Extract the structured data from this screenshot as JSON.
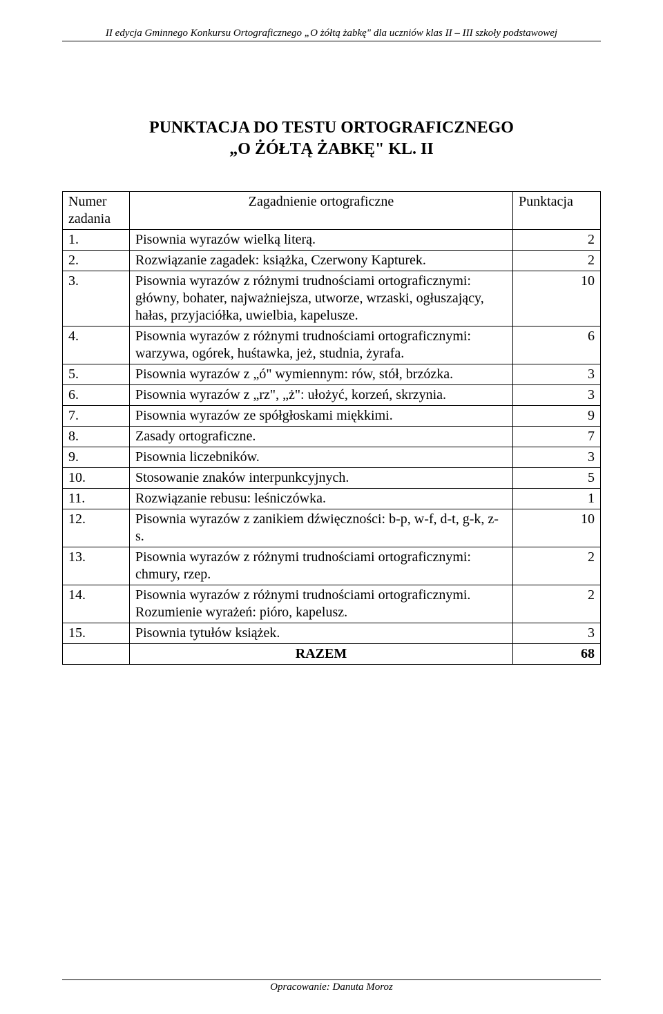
{
  "header": "II edycja Gminnego Konkursu Ortograficznego „O żółtą żabkę\" dla uczniów klas II – III szkoły podstawowej",
  "title_line1": "PUNKTACJA DO TESTU ORTOGRAFICZNEGO",
  "title_line2": "„O ŻÓŁTĄ ŻABKĘ\" KL. II",
  "table": {
    "header_num": "Numer zadania",
    "header_desc": "Zagadnienie ortograficzne",
    "header_pts": "Punktacja",
    "rows": [
      {
        "num": "1.",
        "desc": "Pisownia wyrazów wielką literą.",
        "pts": "2"
      },
      {
        "num": "2.",
        "desc": "Rozwiązanie zagadek: książka, Czerwony Kapturek.",
        "pts": "2"
      },
      {
        "num": "3.",
        "desc": "Pisownia wyrazów z różnymi trudnościami ortograficznymi: główny, bohater, najważniejsza, utworze, wrzaski, ogłuszający, hałas, przyjaciółka, uwielbia, kapelusze.",
        "pts": "10"
      },
      {
        "num": "4.",
        "desc": "Pisownia wyrazów z różnymi trudnościami ortograficznymi: warzywa, ogórek, huśtawka, jeż, studnia, żyrafa.",
        "pts": "6"
      },
      {
        "num": "5.",
        "desc": "Pisownia wyrazów z „ó\" wymiennym: rów, stół, brzózka.",
        "pts": "3"
      },
      {
        "num": "6.",
        "desc": "Pisownia wyrazów z „rz\", „ż\": ułożyć, korzeń, skrzynia.",
        "pts": "3"
      },
      {
        "num": "7.",
        "desc": "Pisownia wyrazów ze spółgłoskami miękkimi.",
        "pts": "9"
      },
      {
        "num": "8.",
        "desc": "Zasady ortograficzne.",
        "pts": "7"
      },
      {
        "num": "9.",
        "desc": "Pisownia liczebników.",
        "pts": "3"
      },
      {
        "num": "10.",
        "desc": "Stosowanie znaków interpunkcyjnych.",
        "pts": "5"
      },
      {
        "num": "11.",
        "desc": "Rozwiązanie rebusu: leśniczówka.",
        "pts": "1"
      },
      {
        "num": "12.",
        "desc": "Pisownia wyrazów z zanikiem dźwięczności: b-p, w-f, d-t, g-k, z-s.",
        "pts": "10"
      },
      {
        "num": "13.",
        "desc": "Pisownia wyrazów z różnymi trudnościami ortograficznymi: chmury, rzep.",
        "pts": "2"
      },
      {
        "num": "14.",
        "desc": "Pisownia wyrazów z różnymi trudnościami ortograficznymi. Rozumienie wyrażeń: pióro, kapelusz.",
        "pts": "2"
      },
      {
        "num": "15.",
        "desc": "Pisownia tytułów książek.",
        "pts": "3"
      }
    ],
    "total_label": "RAZEM",
    "total_value": "68"
  },
  "footer": "Opracowanie: Danuta Moroz"
}
